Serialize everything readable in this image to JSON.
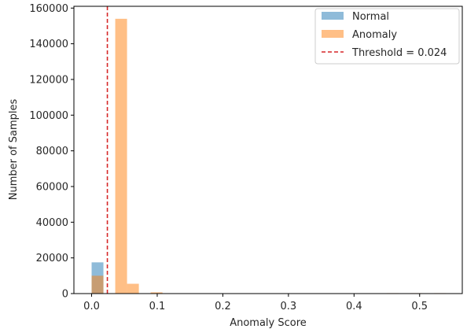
{
  "chart_data": {
    "type": "bar",
    "title": "",
    "xlabel": "Anomaly Score",
    "ylabel": "Number of Samples",
    "xlim": [
      -0.027,
      0.565
    ],
    "ylim": [
      0,
      161000
    ],
    "xticks": [
      0.0,
      0.1,
      0.2,
      0.3,
      0.4,
      0.5
    ],
    "xtick_labels": [
      "0.0",
      "0.1",
      "0.2",
      "0.3",
      "0.4",
      "0.5"
    ],
    "yticks": [
      0,
      20000,
      40000,
      60000,
      80000,
      100000,
      120000,
      140000,
      160000
    ],
    "ytick_labels": [
      "0",
      "20000",
      "40000",
      "60000",
      "80000",
      "100000",
      "120000",
      "140000",
      "160000"
    ],
    "grid": false,
    "legend_position": "top-right",
    "series": [
      {
        "name": "Normal",
        "color": "#1f77b4",
        "opacity": 0.5,
        "bins": [
          {
            "x0": 0.0,
            "x1": 0.018,
            "count": 17500
          }
        ]
      },
      {
        "name": "Anomaly",
        "color": "#ff7f0e",
        "opacity": 0.5,
        "bins": [
          {
            "x0": 0.0,
            "x1": 0.018,
            "count": 10000
          },
          {
            "x0": 0.036,
            "x1": 0.054,
            "count": 154000
          },
          {
            "x0": 0.054,
            "x1": 0.072,
            "count": 5500
          },
          {
            "x0": 0.09,
            "x1": 0.108,
            "count": 700
          },
          {
            "x0": 0.45,
            "x1": 0.468,
            "count": 250
          },
          {
            "x0": 0.486,
            "x1": 0.504,
            "count": 250
          },
          {
            "x0": 0.522,
            "x1": 0.54,
            "count": 250
          }
        ]
      }
    ],
    "threshold": {
      "label": "Threshold = 0.024",
      "value": 0.024,
      "color": "#d62728",
      "style": "dashed"
    }
  }
}
